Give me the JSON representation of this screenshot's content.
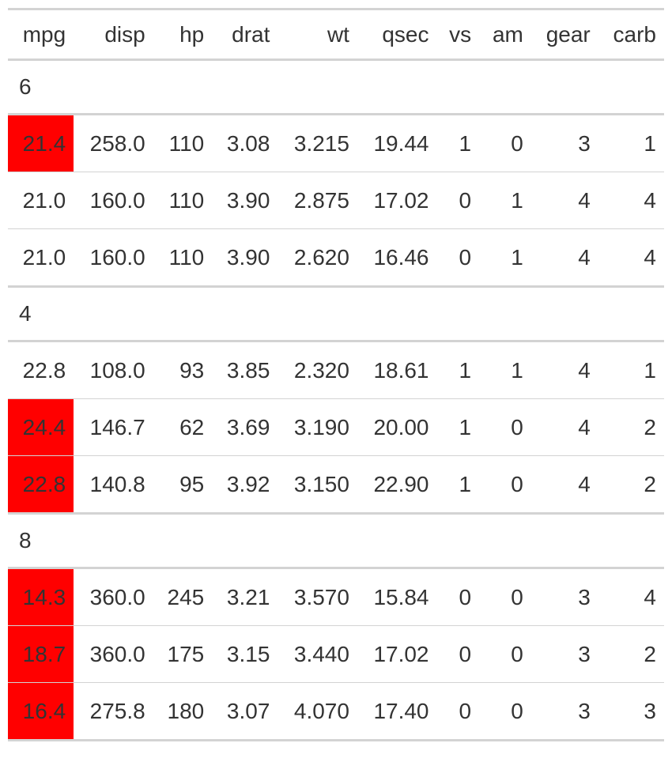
{
  "columns": [
    "mpg",
    "disp",
    "hp",
    "drat",
    "wt",
    "qsec",
    "vs",
    "am",
    "gear",
    "carb"
  ],
  "highlight_color": "#ff0000",
  "groups": [
    {
      "label": "6",
      "rows": [
        {
          "cells": [
            "21.4",
            "258.0",
            "110",
            "3.08",
            "3.215",
            "19.44",
            "1",
            "0",
            "3",
            "1"
          ],
          "highlight": true
        },
        {
          "cells": [
            "21.0",
            "160.0",
            "110",
            "3.90",
            "2.875",
            "17.02",
            "0",
            "1",
            "4",
            "4"
          ],
          "highlight": false
        },
        {
          "cells": [
            "21.0",
            "160.0",
            "110",
            "3.90",
            "2.620",
            "16.46",
            "0",
            "1",
            "4",
            "4"
          ],
          "highlight": false
        }
      ]
    },
    {
      "label": "4",
      "rows": [
        {
          "cells": [
            "22.8",
            "108.0",
            "93",
            "3.85",
            "2.320",
            "18.61",
            "1",
            "1",
            "4",
            "1"
          ],
          "highlight": false
        },
        {
          "cells": [
            "24.4",
            "146.7",
            "62",
            "3.69",
            "3.190",
            "20.00",
            "1",
            "0",
            "4",
            "2"
          ],
          "highlight": true
        },
        {
          "cells": [
            "22.8",
            "140.8",
            "95",
            "3.92",
            "3.150",
            "22.90",
            "1",
            "0",
            "4",
            "2"
          ],
          "highlight": true
        }
      ]
    },
    {
      "label": "8",
      "rows": [
        {
          "cells": [
            "14.3",
            "360.0",
            "245",
            "3.21",
            "3.570",
            "15.84",
            "0",
            "0",
            "3",
            "4"
          ],
          "highlight": true
        },
        {
          "cells": [
            "18.7",
            "360.0",
            "175",
            "3.15",
            "3.440",
            "17.02",
            "0",
            "0",
            "3",
            "2"
          ],
          "highlight": true
        },
        {
          "cells": [
            "16.4",
            "275.8",
            "180",
            "3.07",
            "4.070",
            "17.40",
            "0",
            "0",
            "3",
            "3"
          ],
          "highlight": true
        }
      ]
    }
  ]
}
